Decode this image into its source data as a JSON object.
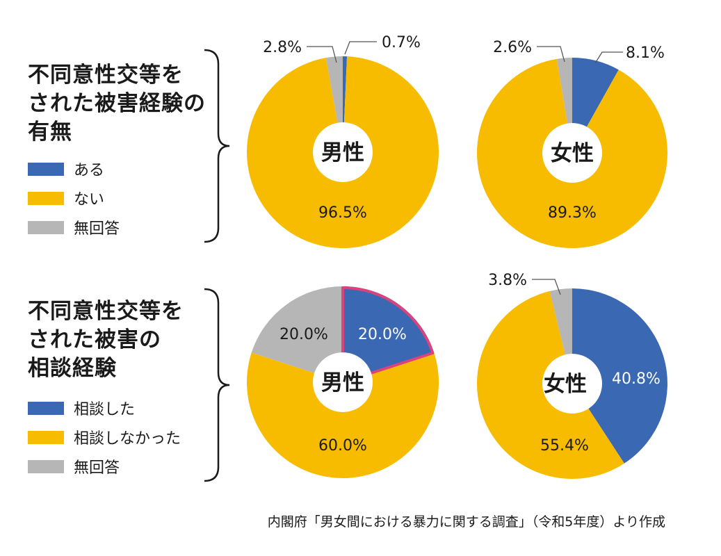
{
  "colors": {
    "blue": "#3a68b3",
    "yellow": "#f7bc00",
    "gray": "#b6b6b6",
    "highlight": "#d9437e"
  },
  "sections": [
    {
      "title_lines": [
        "不同意性交等を",
        "された被害経験の",
        "有無"
      ],
      "legend": [
        {
          "label": "ある",
          "color": "blue"
        },
        {
          "label": "ない",
          "color": "yellow"
        },
        {
          "label": "無回答",
          "color": "gray"
        }
      ]
    },
    {
      "title_lines": [
        "不同意性交等を",
        "された被害の",
        "相談経験"
      ],
      "legend": [
        {
          "label": "相談した",
          "color": "blue"
        },
        {
          "label": "相談しなかった",
          "color": "yellow"
        },
        {
          "label": "無回答",
          "color": "gray"
        }
      ]
    }
  ],
  "chart_data": [
    {
      "type": "pie",
      "title": "男性",
      "series": "不同意性交等をされた被害経験の有無",
      "slices": [
        {
          "label": "ある",
          "value": 0.7,
          "text": "0.7%"
        },
        {
          "label": "ない",
          "value": 96.5,
          "text": "96.5%"
        },
        {
          "label": "無回答",
          "value": 2.8,
          "text": "2.8%"
        }
      ]
    },
    {
      "type": "pie",
      "title": "女性",
      "series": "不同意性交等をされた被害経験の有無",
      "slices": [
        {
          "label": "ある",
          "value": 8.1,
          "text": "8.1%"
        },
        {
          "label": "ない",
          "value": 89.3,
          "text": "89.3%"
        },
        {
          "label": "無回答",
          "value": 2.6,
          "text": "2.6%"
        }
      ]
    },
    {
      "type": "pie",
      "title": "男性",
      "series": "不同意性交等をされた被害の相談経験",
      "slices": [
        {
          "label": "相談した",
          "value": 20.0,
          "text": "20.0%",
          "highlighted": true
        },
        {
          "label": "相談しなかった",
          "value": 60.0,
          "text": "60.0%"
        },
        {
          "label": "無回答",
          "value": 20.0,
          "text": "20.0%"
        }
      ]
    },
    {
      "type": "pie",
      "title": "女性",
      "series": "不同意性交等をされた被害の相談経験",
      "slices": [
        {
          "label": "相談した",
          "value": 40.8,
          "text": "40.8%"
        },
        {
          "label": "相談しなかった",
          "value": 55.4,
          "text": "55.4%"
        },
        {
          "label": "無回答",
          "value": 3.8,
          "text": "3.8%"
        }
      ]
    }
  ],
  "source": "内閣府「男女間における暴力に関する調査」（令和5年度）より作成"
}
